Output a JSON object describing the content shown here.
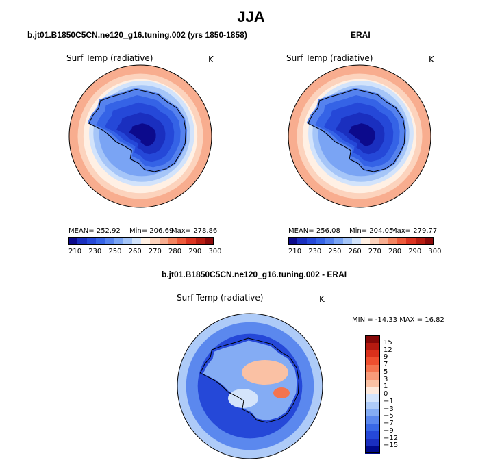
{
  "page": {
    "title": "JJA",
    "panel_left_title": "b.jt01.B1850C5CN.ne120_g16.tuning.002 (yrs 1850-1858)",
    "panel_right_title": "ERAI",
    "panel_diff_title": "b.jt01.B1850C5CN.ne120_g16.tuning.002 - ERAI"
  },
  "panels": {
    "left": {
      "variable": "Surf Temp (radiative)",
      "units": "K",
      "mean_text": "MEAN= 252.92",
      "min_text": "Min= 206.69",
      "max_text": "Max= 278.86"
    },
    "right": {
      "variable": "Surf Temp (radiative)",
      "units": "K",
      "mean_text": "MEAN= 256.08",
      "min_text": "Min= 204.05",
      "max_text": "Max= 279.77"
    },
    "diff": {
      "variable": "Surf Temp (radiative)",
      "units": "K",
      "minmax_text": "MIN = -14.33 MAX =  16.82"
    }
  },
  "colors": {
    "abs_scale": [
      "#0c0a8c",
      "#1a2fbf",
      "#2548d8",
      "#3563e6",
      "#5582ee",
      "#7aa4f4",
      "#a5c5f8",
      "#d2e3fb",
      "#fff0e4",
      "#fcd3bd",
      "#f8ad8f",
      "#f4845f",
      "#ee5a3a",
      "#db3320",
      "#b81d12",
      "#8c0a0a"
    ],
    "diff_scale": [
      "#000a8c",
      "#1a2fbf",
      "#2548d8",
      "#3968e6",
      "#5b88ee",
      "#84acf4",
      "#aecbf8",
      "#d4e4fb",
      "#fde9dc",
      "#fac1a4",
      "#f89b79",
      "#f4744f",
      "#ee4f2f",
      "#d9301b",
      "#b51a10",
      "#850808"
    ],
    "coastline": "#000000"
  },
  "chart_data": [
    {
      "type": "heatmap",
      "projection": "south-polar-stereographic",
      "title": "b.jt01.B1850C5CN.ne120_g16.tuning.002 (yrs 1850-1858)",
      "variable": "Surf Temp (radiative)",
      "units": "K",
      "stats": {
        "mean": 252.92,
        "min": 206.69,
        "max": 278.86
      },
      "colorbar": {
        "levels": [
          210,
          220,
          230,
          240,
          250,
          255,
          260,
          265,
          270,
          275,
          280,
          285,
          290,
          295,
          300
        ],
        "tick_labels": [
          "210",
          "230",
          "250",
          "260",
          "270",
          "280",
          "290",
          "300"
        ]
      }
    },
    {
      "type": "heatmap",
      "projection": "south-polar-stereographic",
      "title": "ERAI",
      "variable": "Surf Temp (radiative)",
      "units": "K",
      "stats": {
        "mean": 256.08,
        "min": 204.05,
        "max": 279.77
      },
      "colorbar": {
        "levels": [
          210,
          220,
          230,
          240,
          250,
          255,
          260,
          265,
          270,
          275,
          280,
          285,
          290,
          295,
          300
        ],
        "tick_labels": [
          "210",
          "230",
          "250",
          "260",
          "270",
          "280",
          "290",
          "300"
        ]
      }
    },
    {
      "type": "heatmap",
      "projection": "south-polar-stereographic",
      "title": "b.jt01.B1850C5CN.ne120_g16.tuning.002 - ERAI",
      "variable": "Surf Temp (radiative)",
      "units": "K",
      "stats": {
        "min": -14.33,
        "max": 16.82
      },
      "colorbar": {
        "orientation": "vertical",
        "levels": [
          -15,
          -12,
          -9,
          -7,
          -5,
          -3,
          -1,
          0,
          1,
          3,
          5,
          7,
          9,
          12,
          15
        ],
        "tick_labels": [
          "15",
          "12",
          "9",
          "7",
          "5",
          "3",
          "1",
          "0",
          "−1",
          "−3",
          "−5",
          "−7",
          "−9",
          "−12",
          "−15"
        ]
      }
    }
  ]
}
